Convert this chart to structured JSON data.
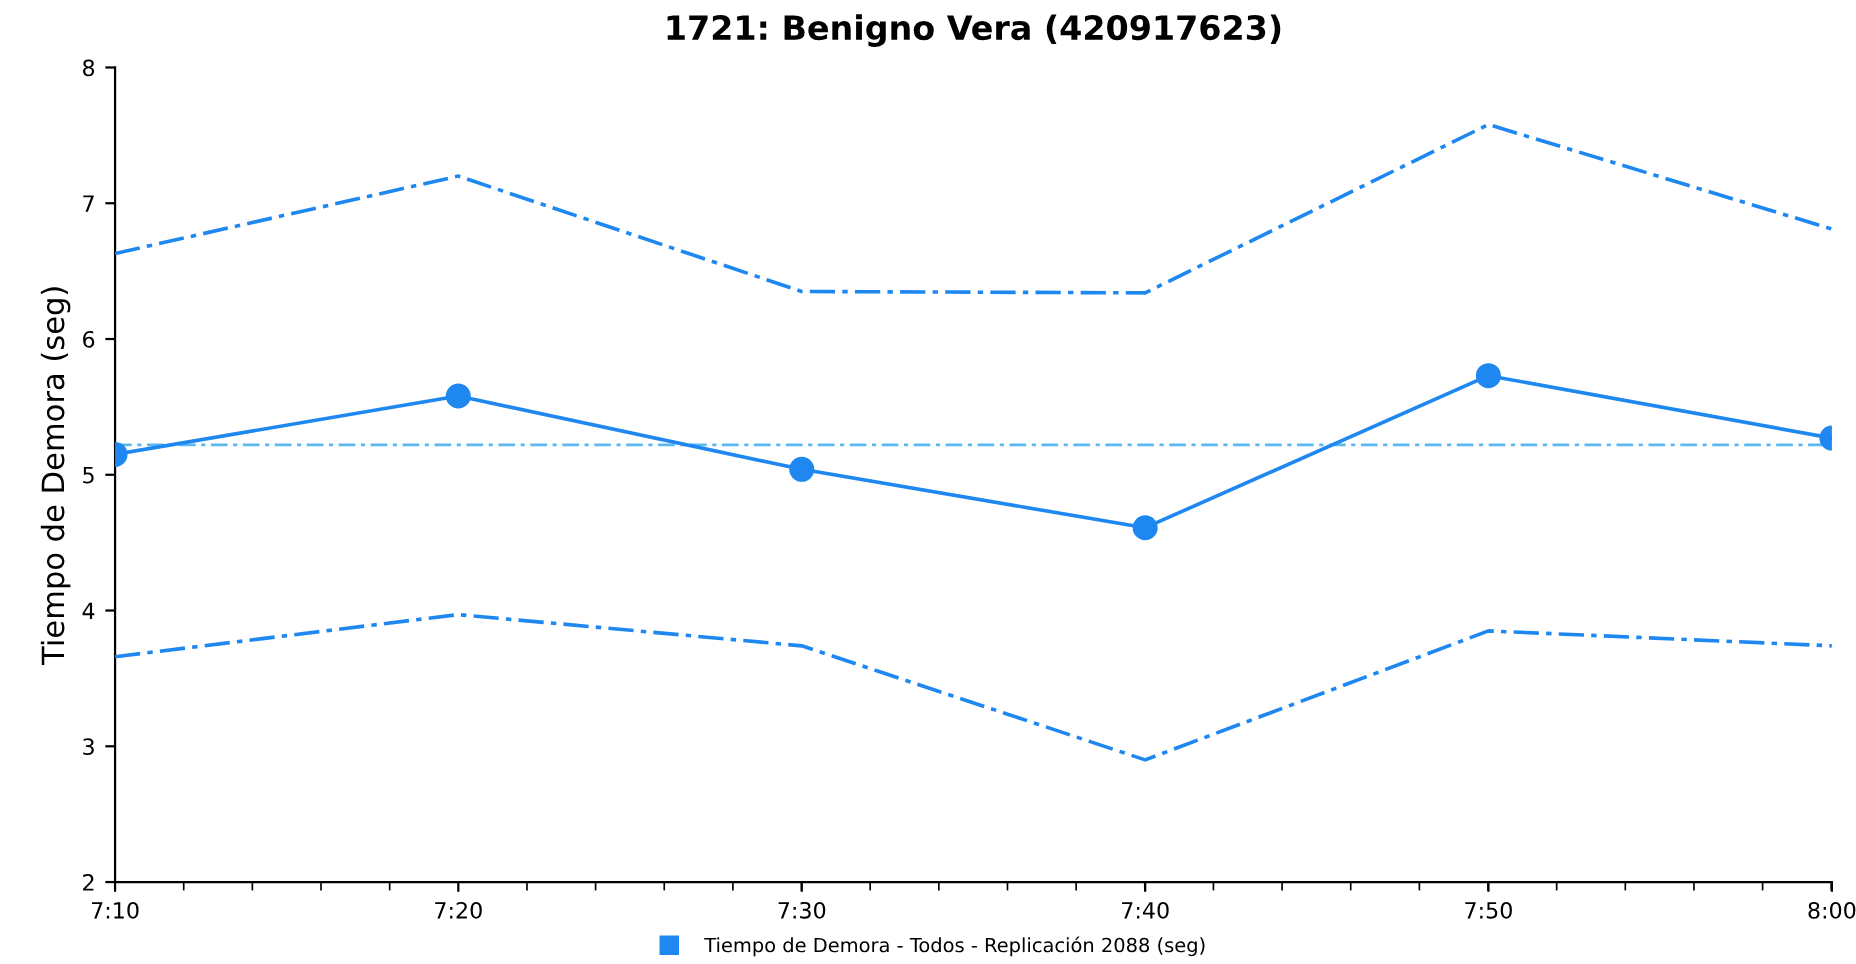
{
  "chart_data": {
    "type": "line",
    "title": "1721: Benigno Vera (420917623)",
    "ylabel": "Tiempo de Demora (seg)",
    "x": [
      7.1667,
      7.3333,
      7.5,
      7.6667,
      7.8333,
      8.0
    ],
    "series": [
      {
        "name": "Tiempo de Demora - Todos - Replicación 2088 (seg)",
        "color": "#1e88f0",
        "values": [
          5.15,
          5.58,
          5.04,
          4.61,
          5.73,
          5.27
        ]
      },
      {
        "color": "#1e88f0",
        "values": [
          6.63,
          7.2,
          6.35,
          6.34,
          7.58,
          6.81
        ],
        "marker": "none",
        "line_style": "dashed"
      },
      {
        "color": "#1e88f0",
        "values": [
          3.66,
          3.97,
          3.74,
          2.9,
          3.85,
          3.74
        ],
        "marker": "none",
        "line_style": "dashed"
      }
    ],
    "xlim": [
      7.1667,
      8.0
    ],
    "xticks": [
      {
        "value": 7.1667,
        "label": "7:10"
      },
      {
        "value": 7.3333,
        "label": "7:20"
      },
      {
        "value": 7.5,
        "label": "7:30"
      },
      {
        "value": 7.6667,
        "label": "7:40"
      },
      {
        "value": 7.8333,
        "label": "7:50"
      },
      {
        "value": 8.0,
        "label": "8:00"
      }
    ],
    "ylim": [
      2,
      8
    ],
    "yticks": [
      2,
      3,
      4,
      5,
      6,
      7,
      8
    ],
    "ref_lines": [
      {
        "axis": "y",
        "value": 5.22,
        "color": "#5bb8f0"
      }
    ],
    "marker": "circle",
    "line_style": "solid",
    "legend": "bottom",
    "grid": false
  }
}
